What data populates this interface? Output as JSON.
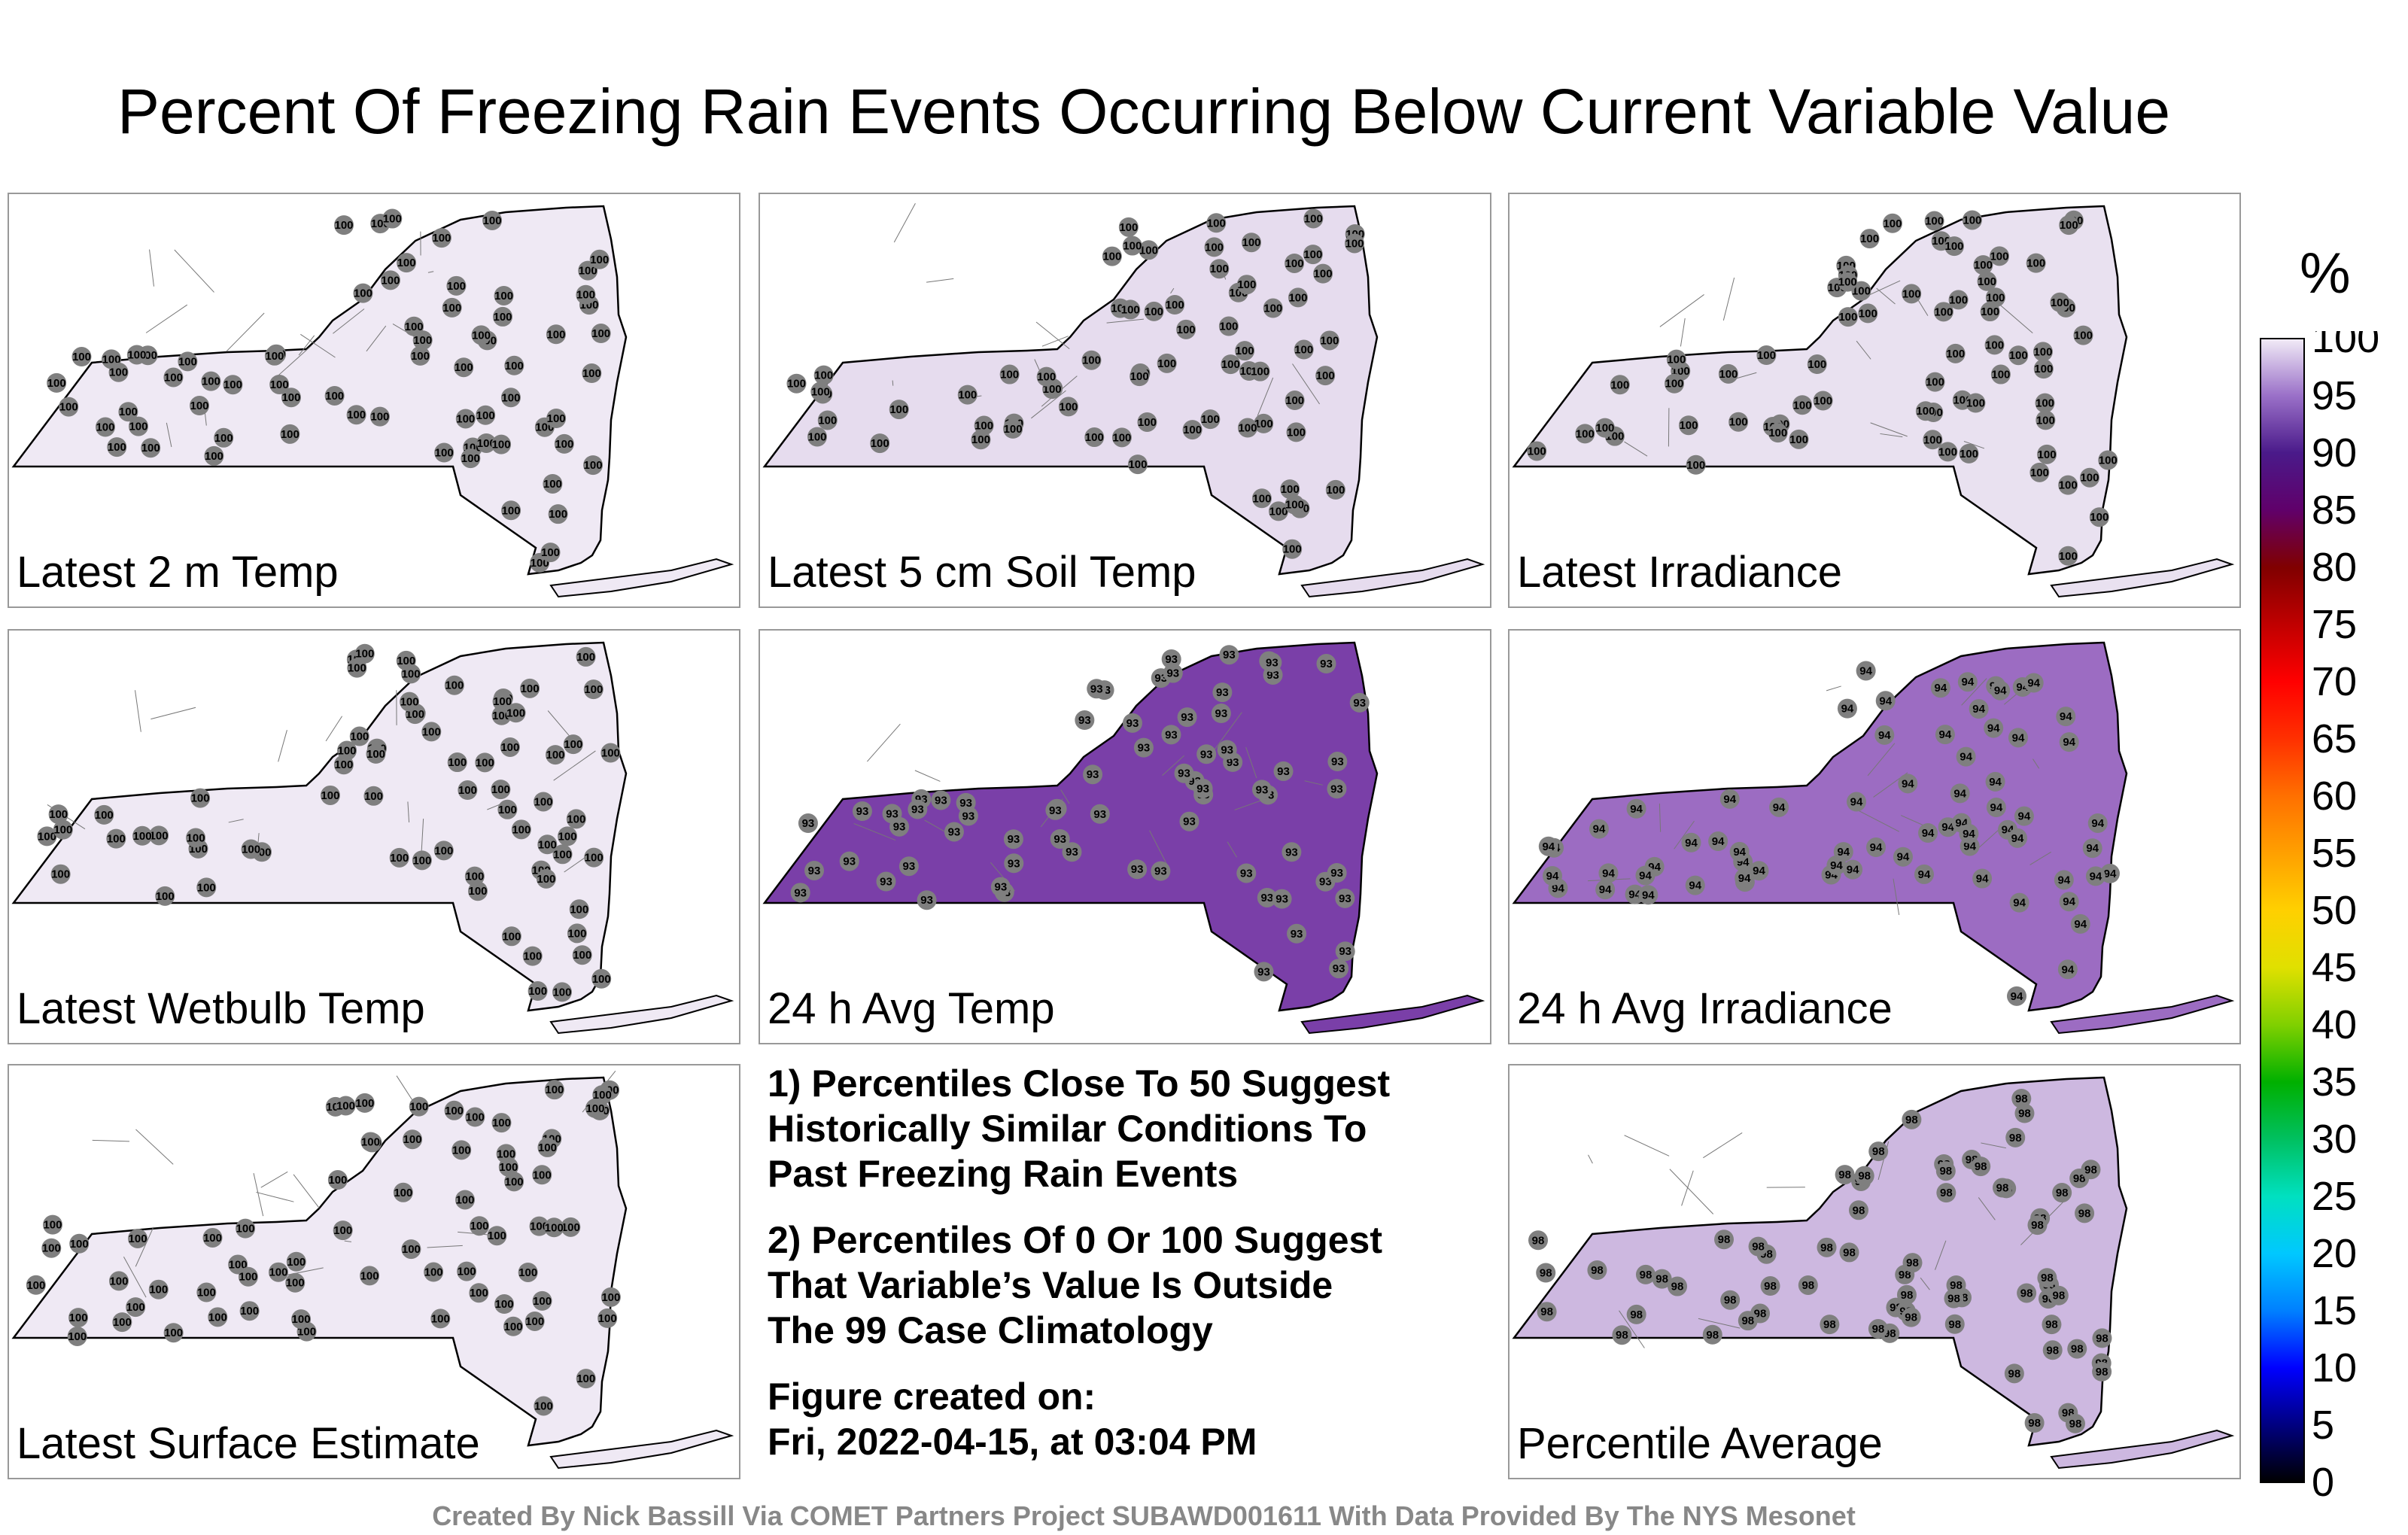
{
  "title": "Percent Of Freezing Rain Events Occurring Below Current Variable Value",
  "panels": [
    {
      "label": "Latest 2 m Temp",
      "base": 100,
      "fill": "#efe9f4"
    },
    {
      "label": "Latest 5 cm Soil Temp",
      "base": 100,
      "fill": "#e6dcee"
    },
    {
      "label": "Latest Irradiance",
      "base": 100,
      "fill": "#e9e1f0"
    },
    {
      "label": "Latest Wetbulb Temp",
      "base": 100,
      "fill": "#efe9f4"
    },
    {
      "label": "24 h Avg Temp",
      "base": 93,
      "fill": "#7a3fa8"
    },
    {
      "label": "24 h Avg Irradiance",
      "base": 94,
      "fill": "#9c6cc2"
    },
    {
      "label": "Latest Surface Estimate",
      "base": 100,
      "fill": "#efe9f4"
    },
    {
      "label": "Percentile Average",
      "base": 98,
      "fill": "#cdb8e0"
    }
  ],
  "notes": {
    "note1": "1) Percentiles Close To 50 Suggest\nHistorically Similar Conditions To\nPast Freezing Rain Events",
    "note2": "2) Percentiles Of 0 Or 100 Suggest\nThat Variable’s Value Is Outside\nThe 99 Case Climatology",
    "created": "Figure created on:\nFri, 2022-04-15, at 03:04 PM"
  },
  "footer": "Created By Nick Bassill Via COMET Partners Project SUBAWD001611 With Data Provided By The NYS Mesonet",
  "colorbar": {
    "unit": "%",
    "ticks": [
      "0",
      "5",
      "10",
      "15",
      "20",
      "25",
      "30",
      "35",
      "40",
      "45",
      "50",
      "55",
      "60",
      "65",
      "70",
      "75",
      "80",
      "85",
      "90",
      "95",
      "100"
    ],
    "stops": [
      "#000000",
      "#000080",
      "#0000ff",
      "#0080ff",
      "#00c8ff",
      "#00e0c0",
      "#00c060",
      "#00b000",
      "#80d000",
      "#e0e000",
      "#ffd000",
      "#ffa000",
      "#ff7000",
      "#ff3000",
      "#ff0000",
      "#c00000",
      "#800000",
      "#60006a",
      "#4a1a8a",
      "#9a70c8",
      "#f2ecf7"
    ]
  }
}
